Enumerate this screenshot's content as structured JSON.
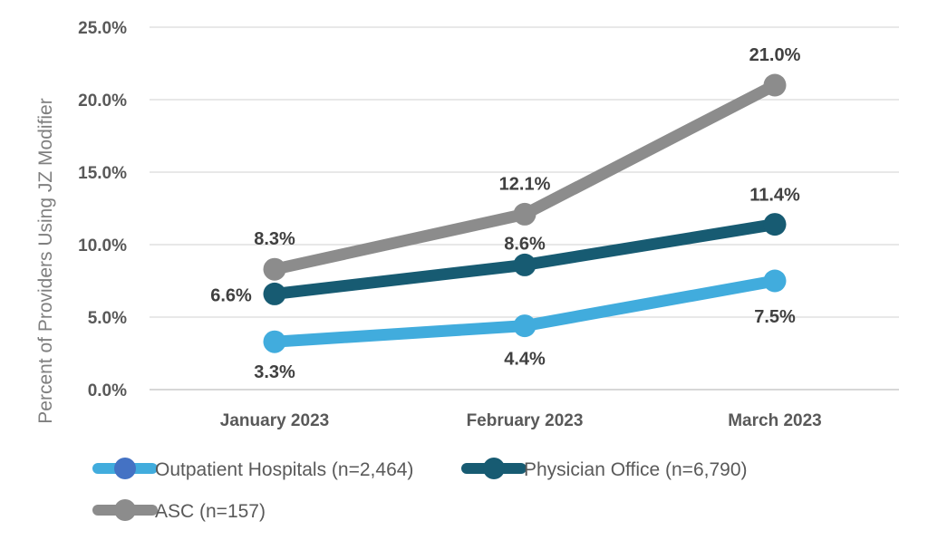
{
  "chart_data": {
    "type": "line",
    "title": "",
    "xlabel": "",
    "ylabel": "Percent of Providers Using JZ Modifier",
    "categories": [
      "January 2023",
      "February 2023",
      "March 2023"
    ],
    "ylim": [
      0,
      25
    ],
    "yticks": [
      "0.0%",
      "5.0%",
      "10.0%",
      "15.0%",
      "20.0%",
      "25.0%"
    ],
    "grid": true,
    "legend_position": "bottom",
    "series": [
      {
        "name": "Outpatient Hospitals (n=2,464)",
        "values": [
          3.3,
          4.4,
          7.5
        ],
        "labels": [
          "3.3%",
          "4.4%",
          "7.5%"
        ],
        "color": "#41ACDD",
        "legend_marker_color": "#4472C4"
      },
      {
        "name": "Physician Office (n=6,790)",
        "values": [
          6.6,
          8.6,
          11.4
        ],
        "labels": [
          "6.6%",
          "8.6%",
          "11.4%"
        ],
        "color": "#175B72",
        "legend_marker_color": "#175B72"
      },
      {
        "name": "ASC (n=157)",
        "values": [
          8.3,
          12.1,
          21.0
        ],
        "labels": [
          "8.3%",
          "12.1%",
          "21.0%"
        ],
        "color": "#8C8C8C",
        "legend_marker_color": "#8C8C8C"
      }
    ]
  }
}
